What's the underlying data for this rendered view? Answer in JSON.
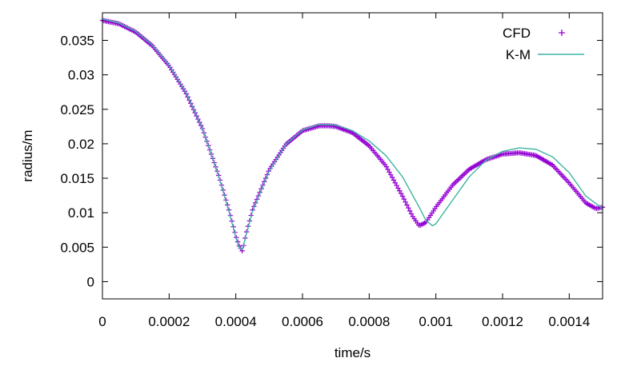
{
  "chart_data": {
    "type": "scatter",
    "xlabel": "time/s",
    "ylabel": "radius/m",
    "xlim": [
      0,
      0.0015
    ],
    "ylim": [
      -0.0025,
      0.039
    ],
    "x_ticks": [
      0,
      0.0002,
      0.0004,
      0.0006,
      0.0008,
      0.001,
      0.0012,
      0.0014
    ],
    "x_tick_labels": [
      "0",
      "0.0002",
      "0.0004",
      "0.0006",
      "0.0008",
      "0.001",
      "0.0012",
      "0.0014"
    ],
    "y_ticks": [
      0,
      0.005,
      0.01,
      0.015,
      0.02,
      0.025,
      0.03,
      0.035
    ],
    "y_tick_labels": [
      "0",
      "0.005",
      "0.01",
      "0.015",
      "0.02",
      "0.025",
      "0.03",
      "0.035"
    ],
    "grid": false,
    "legend_position": "top-right",
    "series": [
      {
        "name": "CFD",
        "style": "points",
        "marker": "+",
        "color": "#9400d3",
        "x": [
          0,
          5e-05,
          0.0001,
          0.00015,
          0.0002,
          0.00025,
          0.0003,
          0.00035,
          0.00038,
          0.0004,
          0.00041,
          0.00042,
          0.00043,
          0.00045,
          0.0005,
          0.00055,
          0.0006,
          0.00065,
          0.00068,
          0.0007,
          0.00075,
          0.0008,
          0.00085,
          0.0009,
          0.00093,
          0.00095,
          0.00097,
          0.001,
          0.00105,
          0.0011,
          0.00115,
          0.0012,
          0.00125,
          0.0013,
          0.00135,
          0.0014,
          0.00145,
          0.00148,
          0.0015
        ],
        "y": [
          0.0379,
          0.0374,
          0.0362,
          0.0342,
          0.0313,
          0.0274,
          0.0222,
          0.0152,
          0.0103,
          0.0066,
          0.0052,
          0.0044,
          0.0068,
          0.0104,
          0.0162,
          0.0199,
          0.0219,
          0.0226,
          0.0226,
          0.0225,
          0.0216,
          0.0197,
          0.0168,
          0.0124,
          0.0095,
          0.0081,
          0.0086,
          0.0108,
          0.014,
          0.0163,
          0.0177,
          0.0185,
          0.0187,
          0.0183,
          0.0169,
          0.0143,
          0.0114,
          0.0106,
          0.0108
        ]
      },
      {
        "name": "K-M",
        "style": "line",
        "color": "#3cb4a0",
        "x": [
          0,
          5e-05,
          0.0001,
          0.00015,
          0.0002,
          0.00025,
          0.0003,
          0.00035,
          0.00038,
          0.0004,
          0.00041,
          0.00042,
          0.00043,
          0.00045,
          0.0005,
          0.00055,
          0.0006,
          0.00065,
          0.0007,
          0.00075,
          0.0008,
          0.00085,
          0.0009,
          0.00095,
          0.00097,
          0.00099,
          0.001,
          0.00105,
          0.0011,
          0.00115,
          0.0012,
          0.00125,
          0.0013,
          0.00135,
          0.0014,
          0.00145,
          0.0015
        ],
        "y": [
          0.0381,
          0.0375,
          0.0363,
          0.0343,
          0.0314,
          0.0275,
          0.0222,
          0.0151,
          0.0101,
          0.0064,
          0.0049,
          0.0047,
          0.0066,
          0.0102,
          0.016,
          0.0199,
          0.022,
          0.0228,
          0.0227,
          0.0219,
          0.0204,
          0.0183,
          0.0152,
          0.0108,
          0.0089,
          0.0081,
          0.0084,
          0.0118,
          0.0152,
          0.0176,
          0.0189,
          0.0194,
          0.0192,
          0.0181,
          0.0158,
          0.0124,
          0.0106
        ]
      }
    ]
  }
}
